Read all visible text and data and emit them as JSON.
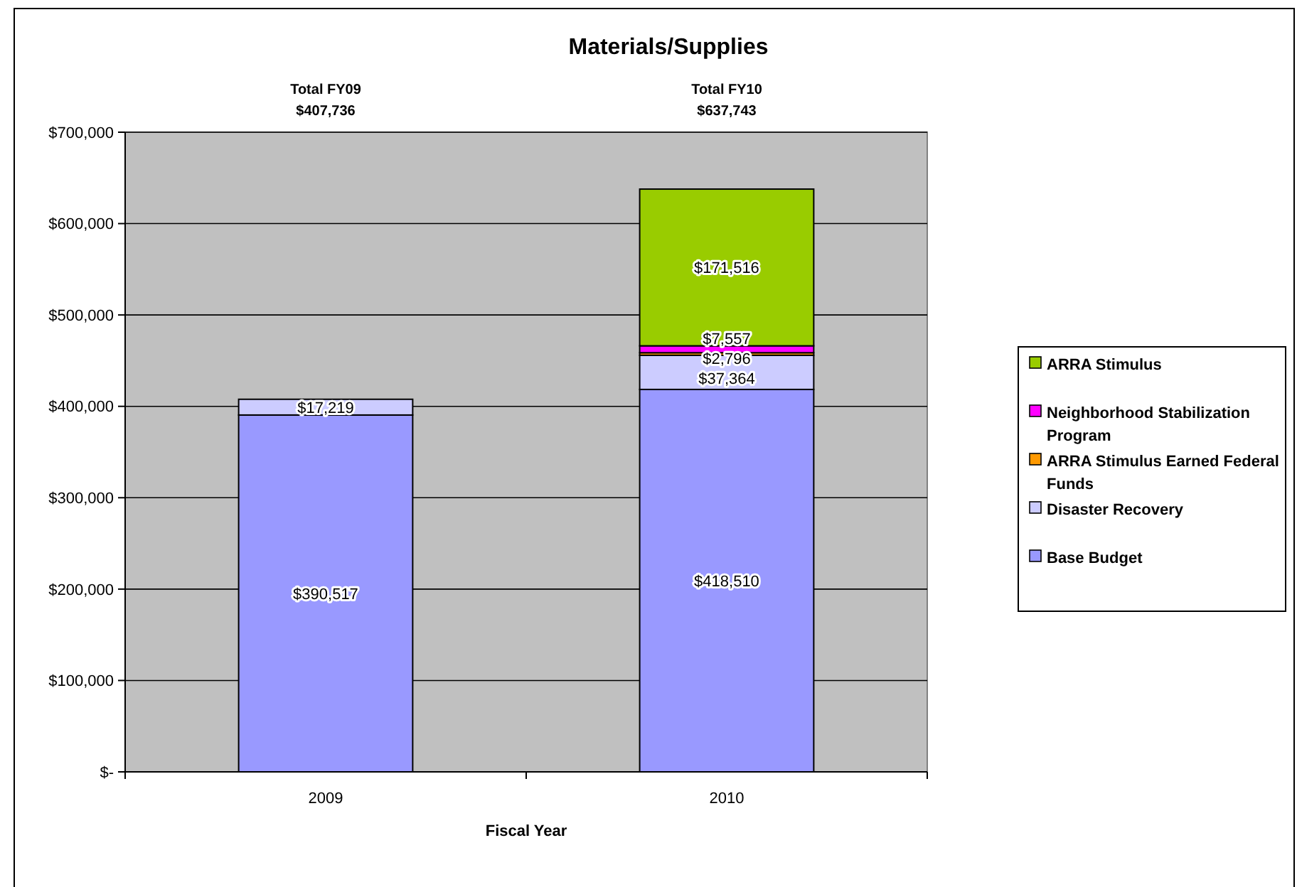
{
  "chart_data": {
    "type": "bar",
    "title": "Materials/Supplies",
    "xlabel": "Fiscal Year",
    "categories": [
      "2009",
      "2010"
    ],
    "stacked": true,
    "series": [
      {
        "name": "Base Budget",
        "color": "#9999ff",
        "values": [
          390517,
          418510
        ],
        "value_labels": [
          "$390,517",
          "$418,510"
        ]
      },
      {
        "name": "Disaster Recovery",
        "color": "#ccccff",
        "values": [
          17219,
          37364
        ],
        "value_labels": [
          "$17,219",
          "$37,364"
        ]
      },
      {
        "name": "ARRA Stimulus Earned Federal Funds",
        "color": "#ff9900",
        "values": [
          null,
          2796
        ],
        "value_labels": [
          null,
          "$2,796"
        ]
      },
      {
        "name": "Neighborhood Stabilization Program",
        "color": "#ff00ff",
        "values": [
          null,
          7557
        ],
        "value_labels": [
          null,
          "$7,557"
        ]
      },
      {
        "name": "ARRA Stimulus",
        "color": "#99cc00",
        "values": [
          null,
          171516
        ],
        "value_labels": [
          null,
          "$171,516"
        ]
      }
    ],
    "annotations": [
      "Total FY09\n$407,736",
      "Total FY10\n$637,743"
    ],
    "ylim": [
      0,
      700000
    ],
    "yticks": [
      {
        "value": 0,
        "label": "$-"
      },
      {
        "value": 100000,
        "label": "$100,000"
      },
      {
        "value": 200000,
        "label": "$200,000"
      },
      {
        "value": 300000,
        "label": "$300,000"
      },
      {
        "value": 400000,
        "label": "$400,000"
      },
      {
        "value": 500000,
        "label": "$500,000"
      },
      {
        "value": 600000,
        "label": "$600,000"
      },
      {
        "value": 700000,
        "label": "$700,000"
      }
    ],
    "grid": "y",
    "legend": "right"
  }
}
